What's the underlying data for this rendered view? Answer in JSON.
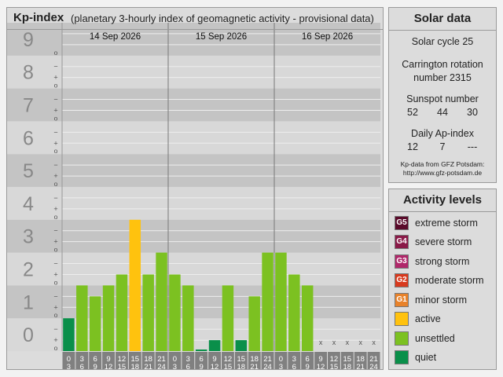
{
  "kp_panel": {
    "title": "Kp-index",
    "subtitle": "(planetary 3-hourly index of geomagnetic activity - provisional data)",
    "dates": [
      "14 Sep 2026",
      "15 Sep 2026",
      "16 Sep 2026"
    ],
    "level_labels": [
      "0",
      "1",
      "2",
      "3",
      "4",
      "5",
      "6",
      "7",
      "8",
      "9"
    ],
    "sublevel_marks": [
      "o",
      "+",
      "−"
    ],
    "interval_start_hours": [
      "0",
      "3",
      "6",
      "9",
      "12",
      "15",
      "18",
      "21"
    ],
    "interval_end_hours": [
      "3",
      "6",
      "9",
      "12",
      "15",
      "18",
      "21",
      "24"
    ],
    "missing_mark": "x"
  },
  "chart_data": {
    "type": "bar",
    "title": "Kp-index",
    "subtitle": "(planetary 3-hourly index of geomagnetic activity - provisional data)",
    "ylim": [
      0,
      9
    ],
    "categories": [
      "14 Sep 2026 0-3",
      "14 Sep 2026 3-6",
      "14 Sep 2026 6-9",
      "14 Sep 2026 9-12",
      "14 Sep 2026 12-15",
      "14 Sep 2026 15-18",
      "14 Sep 2026 18-21",
      "14 Sep 2026 21-24",
      "15 Sep 2026 0-3",
      "15 Sep 2026 3-6",
      "15 Sep 2026 6-9",
      "15 Sep 2026 9-12",
      "15 Sep 2026 12-15",
      "15 Sep 2026 15-18",
      "15 Sep 2026 18-21",
      "15 Sep 2026 21-24",
      "16 Sep 2026 0-3",
      "16 Sep 2026 3-6",
      "16 Sep 2026 6-9",
      "16 Sep 2026 9-12",
      "16 Sep 2026 12-15",
      "16 Sep 2026 15-18",
      "16 Sep 2026 18-21",
      "16 Sep 2026 21-24"
    ],
    "values": [
      1,
      2,
      1.667,
      2,
      2.333,
      4,
      2.333,
      3,
      2.333,
      2,
      0,
      0.333,
      2,
      0.333,
      1.667,
      3,
      3,
      2.333,
      2,
      null,
      null,
      null,
      null,
      null
    ],
    "grid": true
  },
  "solar": {
    "title": "Solar data",
    "cycle": "Solar cycle 25",
    "carrington_line1": "Carrington rotation",
    "carrington_line2": "number 2315",
    "sunspot_label": "Sunspot number",
    "sunspot_values": [
      "52",
      "44",
      "30"
    ],
    "ap_label": "Daily Ap-index",
    "ap_values": [
      "12",
      "7",
      "---"
    ],
    "source_line1": "Kp-data from GFZ Potsdam:",
    "source_line2": "http://www.gfz-potsdam.de"
  },
  "activity": {
    "title": "Activity levels",
    "levels": [
      {
        "code": "G5",
        "label": "extreme storm",
        "color": "#5a0a2a"
      },
      {
        "code": "G4",
        "label": "severe storm",
        "color": "#8a1a48"
      },
      {
        "code": "G3",
        "label": "strong storm",
        "color": "#b0286a"
      },
      {
        "code": "G2",
        "label": "moderate storm",
        "color": "#d83a1e"
      },
      {
        "code": "G1",
        "label": "minor storm",
        "color": "#e8822a"
      },
      {
        "code": "",
        "label": "active",
        "color": "#ffc20e"
      },
      {
        "code": "",
        "label": "unsettled",
        "color": "#7cc121"
      },
      {
        "code": "",
        "label": "quiet",
        "color": "#0a8f4a"
      }
    ]
  }
}
